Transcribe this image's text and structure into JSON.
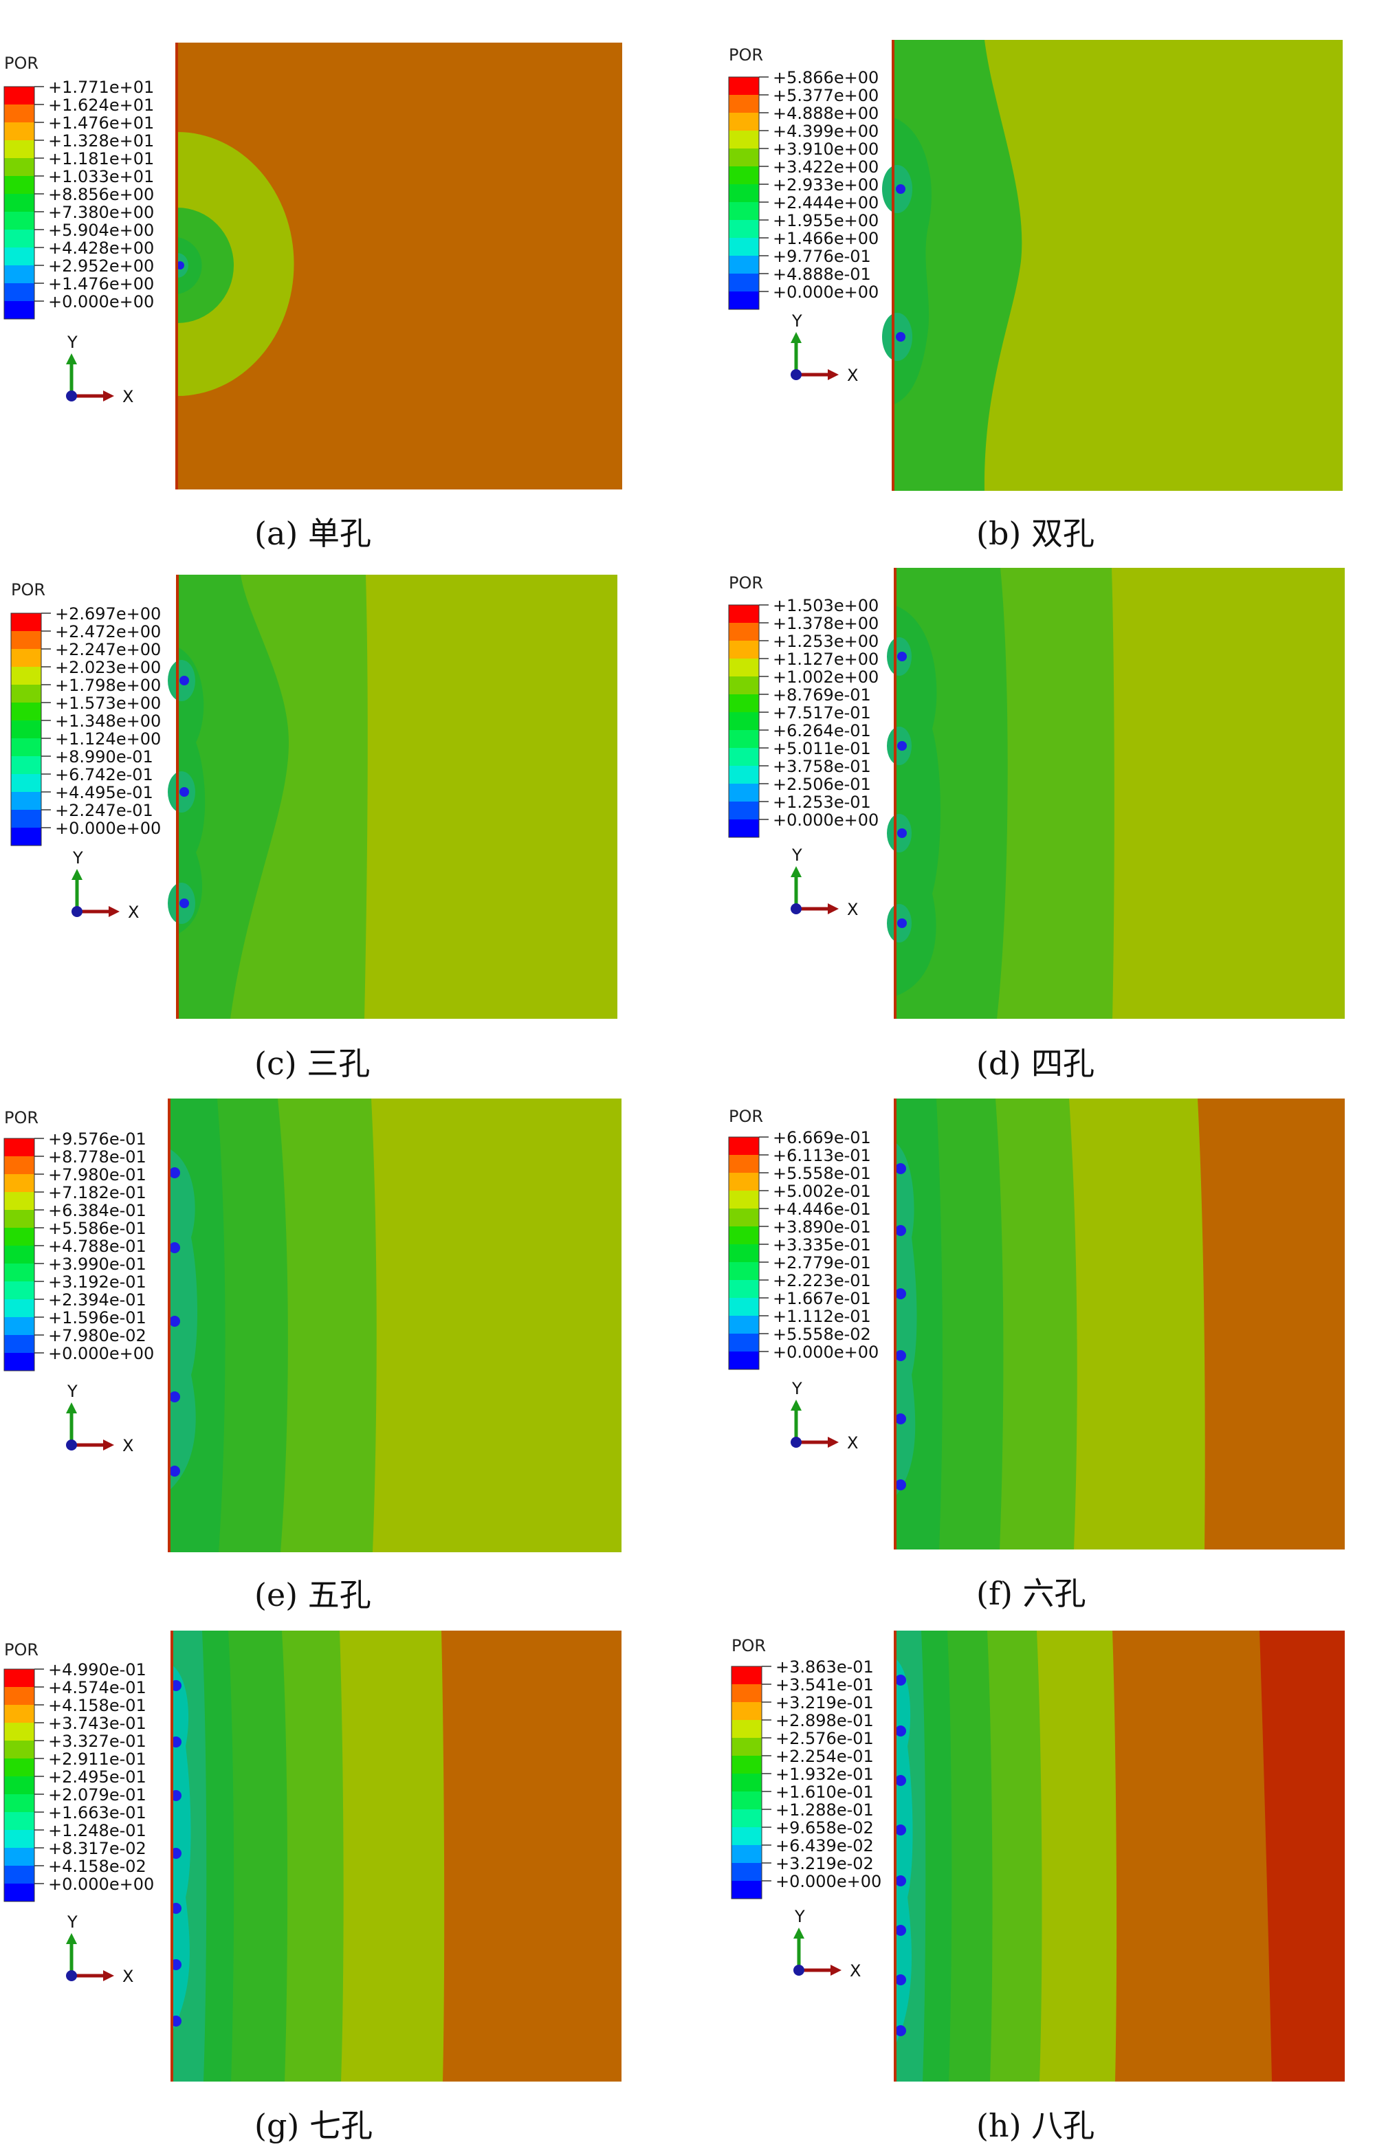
{
  "colors": {
    "scale": [
      "#0000ff",
      "#0052ff",
      "#00a6ff",
      "#00ecd8",
      "#00f79a",
      "#00ef5a",
      "#00de2b",
      "#22dd00",
      "#7bd300",
      "#c9e700",
      "#ffb000",
      "#ff6e00",
      "#ff0000"
    ],
    "contour_fills": {
      "blue": "#1e1ee8",
      "cyan": "#00c2a7",
      "teal_green": "#1bb36a",
      "green_deep": "#1fb233",
      "green": "#34b424",
      "green_mid": "#5cba14",
      "green_yellow": "#8fbc00",
      "olive": "#9ebd00",
      "orange": "#bd6600",
      "red": "#bf2a00"
    }
  },
  "panels": [
    {
      "id": "a",
      "caption": "(a) 单孔",
      "variable": "POR",
      "legend_values": [
        "+1.771e+01",
        "+1.624e+01",
        "+1.476e+01",
        "+1.328e+01",
        "+1.181e+01",
        "+1.033e+01",
        "+8.856e+00",
        "+7.380e+00",
        "+5.904e+00",
        "+4.428e+00",
        "+2.952e+00",
        "+1.476e+00",
        "+0.000e+00"
      ],
      "axis_labels": {
        "y": "Y",
        "x": "X"
      },
      "holes": 1,
      "background": "orange"
    },
    {
      "id": "b",
      "caption": "(b) 双孔",
      "variable": "POR",
      "legend_values": [
        "+5.866e+00",
        "+5.377e+00",
        "+4.888e+00",
        "+4.399e+00",
        "+3.910e+00",
        "+3.422e+00",
        "+2.933e+00",
        "+2.444e+00",
        "+1.955e+00",
        "+1.466e+00",
        "+9.776e-01",
        "+4.888e-01",
        "+0.000e+00"
      ],
      "axis_labels": {
        "y": "Y",
        "x": "X"
      },
      "holes": 2,
      "background": "olive"
    },
    {
      "id": "c",
      "caption": "(c) 三孔",
      "variable": "POR",
      "legend_values": [
        "+2.697e+00",
        "+2.472e+00",
        "+2.247e+00",
        "+2.023e+00",
        "+1.798e+00",
        "+1.573e+00",
        "+1.348e+00",
        "+1.124e+00",
        "+8.990e-01",
        "+6.742e-01",
        "+4.495e-01",
        "+2.247e-01",
        "+0.000e+00"
      ],
      "axis_labels": {
        "y": "Y",
        "x": "X"
      },
      "holes": 3,
      "background": "olive"
    },
    {
      "id": "d",
      "caption": "(d) 四孔",
      "variable": "POR",
      "legend_values": [
        "+1.503e+00",
        "+1.378e+00",
        "+1.253e+00",
        "+1.127e+00",
        "+1.002e+00",
        "+8.769e-01",
        "+7.517e-01",
        "+6.264e-01",
        "+5.011e-01",
        "+3.758e-01",
        "+2.506e-01",
        "+1.253e-01",
        "+0.000e+00"
      ],
      "axis_labels": {
        "y": "Y",
        "x": "X"
      },
      "holes": 4,
      "background": "olive"
    },
    {
      "id": "e",
      "caption": "(e) 五孔",
      "variable": "POR",
      "legend_values": [
        "+9.576e-01",
        "+8.778e-01",
        "+7.980e-01",
        "+7.182e-01",
        "+6.384e-01",
        "+5.586e-01",
        "+4.788e-01",
        "+3.990e-01",
        "+3.192e-01",
        "+2.394e-01",
        "+1.596e-01",
        "+7.980e-02",
        "+0.000e+00"
      ],
      "axis_labels": {
        "y": "Y",
        "x": "X"
      },
      "holes": 5,
      "background": "olive"
    },
    {
      "id": "f",
      "caption": "(f) 六孔",
      "variable": "POR",
      "legend_values": [
        "+6.669e-01",
        "+6.113e-01",
        "+5.558e-01",
        "+5.002e-01",
        "+4.446e-01",
        "+3.890e-01",
        "+3.335e-01",
        "+2.779e-01",
        "+2.223e-01",
        "+1.667e-01",
        "+1.112e-01",
        "+5.558e-02",
        "+0.000e+00"
      ],
      "axis_labels": {
        "y": "Y",
        "x": "X"
      },
      "holes": 6,
      "background": "orange"
    },
    {
      "id": "g",
      "caption": "(g) 七孔",
      "variable": "POR",
      "legend_values": [
        "+4.990e-01",
        "+4.574e-01",
        "+4.158e-01",
        "+3.743e-01",
        "+3.327e-01",
        "+2.911e-01",
        "+2.495e-01",
        "+2.079e-01",
        "+1.663e-01",
        "+1.248e-01",
        "+8.317e-02",
        "+4.158e-02",
        "+0.000e+00"
      ],
      "axis_labels": {
        "y": "Y",
        "x": "X"
      },
      "holes": 7,
      "background": "orange"
    },
    {
      "id": "h",
      "caption": "(h) 八孔",
      "variable": "POR",
      "legend_values": [
        "+3.863e-01",
        "+3.541e-01",
        "+3.219e-01",
        "+2.898e-01",
        "+2.576e-01",
        "+2.254e-01",
        "+1.932e-01",
        "+1.610e-01",
        "+1.288e-01",
        "+9.658e-02",
        "+6.439e-02",
        "+3.219e-02",
        "+0.000e+00"
      ],
      "axis_labels": {
        "y": "Y",
        "x": "X"
      },
      "holes": 8,
      "background": "red"
    }
  ]
}
